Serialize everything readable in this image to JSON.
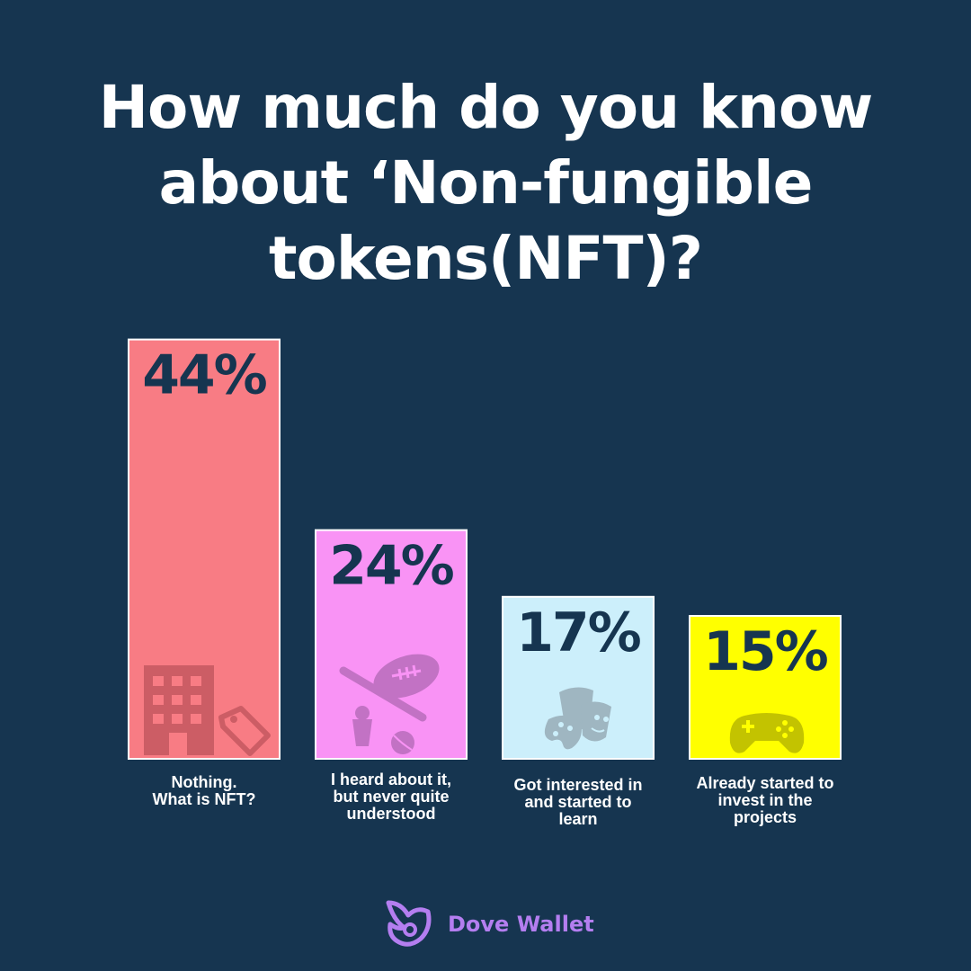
{
  "title_lines": [
    "How much do you know",
    "about ‘Non-fungible",
    "tokens(NFT)?"
  ],
  "chart_data": {
    "type": "bar",
    "title": "How much do you know about ‘Non-fungible tokens(NFT)?",
    "categories": [
      "Nothing. What is NFT?",
      "I heard about it, but never quite understood",
      "Got interested in and started to learn",
      "Already started to invest in the projects"
    ],
    "category_lines": [
      [
        "Nothing.",
        "What is NFT?"
      ],
      [
        "I heard about it,",
        "but never quite",
        "understood"
      ],
      [
        "Got interested in",
        "and started to",
        "learn"
      ],
      [
        "Already started to",
        "invest in the",
        "projects"
      ]
    ],
    "values": [
      44,
      24,
      17,
      15
    ],
    "value_labels": [
      "44%",
      "24%",
      "17%",
      "15%"
    ],
    "unit": "%",
    "colors": [
      "#f87c84",
      "#f993f5",
      "#cceffb",
      "#ffff00"
    ],
    "icons": [
      "building-price-tag-icon",
      "sports-equipment-icon",
      "theater-masks-palette-icon",
      "game-controller-icon"
    ],
    "xlabel": "",
    "ylabel": "",
    "grid": false,
    "legend": "none"
  },
  "brand": {
    "name": "Dove Wallet",
    "icon": "dove-wallet-logo-icon",
    "color": "#b47ef0"
  }
}
